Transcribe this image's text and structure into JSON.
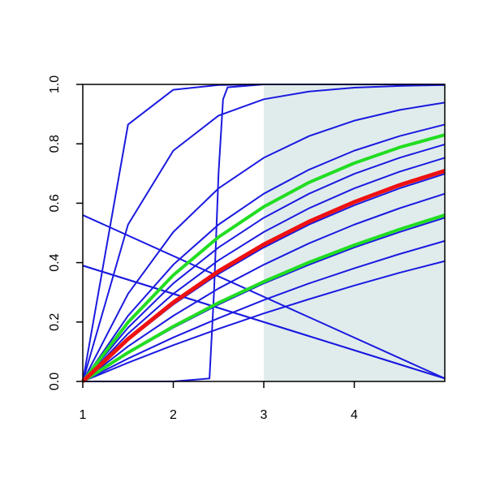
{
  "chart_data": {
    "type": "line",
    "x": [
      1,
      1.5,
      2,
      2.5,
      3,
      3.5,
      4,
      4.5,
      5
    ],
    "xlim": [
      1,
      5
    ],
    "xticks": [
      1,
      2,
      3,
      4
    ],
    "ylim": [
      0,
      1
    ],
    "yticks": [
      {
        "value": 0,
        "label": "0.0"
      },
      0.2,
      0.4,
      0.6,
      0.8,
      {
        "value": 1,
        "label": "1.0"
      }
    ],
    "shaded_region": [
      3,
      5
    ],
    "shaded_color": "#e0ecec",
    "series": [
      {
        "color": "#1a1ae0",
        "values": [
          0,
          0.063,
          0.122,
          0.177,
          0.229,
          0.277,
          0.323,
          0.366,
          0.405
        ]
      },
      {
        "color": "#1a1ae0",
        "values": [
          0,
          0.077,
          0.148,
          0.213,
          0.274,
          0.33,
          0.381,
          0.429,
          0.473
        ]
      },
      {
        "color": "#1a1ae0",
        "values": [
          0,
          0.095,
          0.181,
          0.259,
          0.33,
          0.393,
          0.451,
          0.503,
          0.551
        ]
      },
      {
        "color": "#1a1ae0",
        "values": [
          0,
          0.118,
          0.221,
          0.313,
          0.393,
          0.465,
          0.528,
          0.583,
          0.632
        ]
      },
      {
        "color": "#1a1ae0",
        "values": [
          0,
          0.139,
          0.259,
          0.362,
          0.451,
          0.528,
          0.593,
          0.65,
          0.699
        ]
      },
      {
        "color": "#1a1ae0",
        "values": [
          0,
          0.161,
          0.295,
          0.408,
          0.503,
          0.583,
          0.65,
          0.706,
          0.753
        ]
      },
      {
        "color": "#1a1ae0",
        "values": [
          0,
          0.181,
          0.33,
          0.451,
          0.551,
          0.632,
          0.699,
          0.753,
          0.798
        ]
      },
      {
        "color": "#1a1ae0",
        "values": [
          0,
          0.221,
          0.393,
          0.528,
          0.632,
          0.713,
          0.777,
          0.826,
          0.865
        ]
      },
      {
        "color": "#1a1ae0",
        "values": [
          0,
          0.295,
          0.503,
          0.65,
          0.753,
          0.826,
          0.878,
          0.914,
          0.939
        ]
      },
      {
        "color": "#1a1ae0",
        "values": [
          0,
          0.528,
          0.777,
          0.895,
          0.95,
          0.976,
          0.989,
          0.995,
          0.998
        ]
      },
      {
        "color": "#1a1ae0",
        "values": [
          0,
          0.865,
          0.982,
          0.998,
          1,
          1,
          1,
          1,
          1
        ]
      },
      {
        "color": "#1a1ae0",
        "x": [
          1,
          1.5,
          2,
          2.4,
          2.45,
          2.5,
          2.55,
          2.6,
          3,
          5
        ],
        "values": [
          0,
          0,
          0,
          0.01,
          0.3,
          0.7,
          0.95,
          0.99,
          1,
          1
        ]
      },
      {
        "color": "#1a1ae0",
        "x": [
          1,
          5
        ],
        "values": [
          0.56,
          0.01
        ]
      },
      {
        "color": "#1a1ae0",
        "x": [
          1,
          5
        ],
        "values": [
          0.39,
          0.01
        ]
      },
      {
        "color": "#1a1ae0",
        "x": [
          1,
          3,
          5
        ],
        "values": [
          0.39,
          0.2,
          0.01
        ]
      },
      {
        "color": "#22dd22",
        "width": 4,
        "values": [
          0,
          0.199,
          0.358,
          0.486,
          0.588,
          0.67,
          0.735,
          0.788,
          0.83
        ]
      },
      {
        "color": "#22dd22",
        "width": 4,
        "values": [
          0,
          0.097,
          0.185,
          0.265,
          0.336,
          0.401,
          0.459,
          0.512,
          0.56
        ]
      },
      {
        "color": "#ee1111",
        "width": 5,
        "values": [
          0,
          0.143,
          0.266,
          0.371,
          0.461,
          0.538,
          0.604,
          0.661,
          0.709
        ]
      }
    ]
  }
}
